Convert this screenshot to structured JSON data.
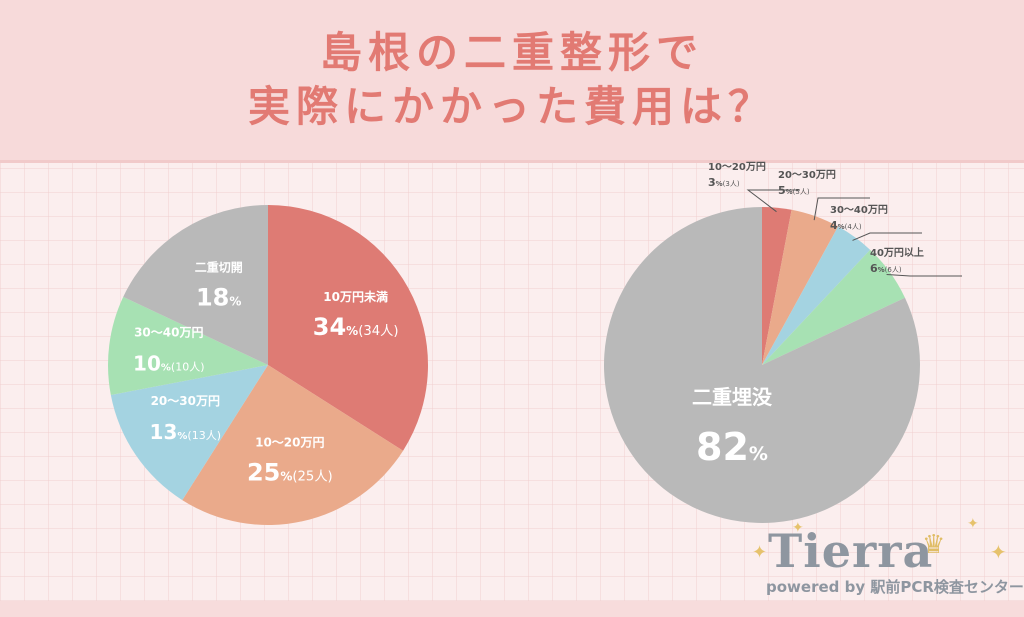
{
  "header": {
    "title_line1": "島根の二重整形で",
    "title_line2": "実際にかかった費用は？"
  },
  "chart_data": [
    {
      "type": "pie",
      "slices": [
        {
          "label": "10万円未満",
          "percent": 34,
          "pct_suffix": "%",
          "count_text": "(34人)",
          "color": "#de7b74"
        },
        {
          "label": "10〜20万円",
          "percent": 25,
          "pct_suffix": "%",
          "count_text": "(25人)",
          "color": "#eaaa8b"
        },
        {
          "label": "20〜30万円",
          "percent": 13,
          "pct_suffix": "%",
          "count_text": "(13人)",
          "color": "#a4d3e1"
        },
        {
          "label": "30〜40万円",
          "percent": 10,
          "pct_suffix": "%",
          "count_text": "(10人)",
          "color": "#a7e1b3"
        },
        {
          "label": "二重切開",
          "percent": 18,
          "pct_suffix": "%",
          "count_text": "",
          "color": "#b9b9b9"
        }
      ]
    },
    {
      "type": "pie",
      "slices": [
        {
          "label": "10〜20万円",
          "percent": 3,
          "pct_suffix": "%",
          "count_text": "(3人)",
          "color": "#de7b74"
        },
        {
          "label": "20〜30万円",
          "percent": 5,
          "pct_suffix": "%",
          "count_text": "(5人)",
          "color": "#eaaa8b"
        },
        {
          "label": "30〜40万円",
          "percent": 4,
          "pct_suffix": "%",
          "count_text": "(4人)",
          "color": "#a4d3e1"
        },
        {
          "label": "40万円以上",
          "percent": 6,
          "pct_suffix": "%",
          "count_text": "(6人)",
          "color": "#a7e1b3"
        },
        {
          "label": "二重埋没",
          "percent": 82,
          "pct_suffix": "%",
          "count_text": "",
          "color": "#b9b9b9"
        }
      ]
    }
  ],
  "logo": {
    "brand": "Tierra",
    "tagline": "powered by 駅前PCR検査センター"
  }
}
